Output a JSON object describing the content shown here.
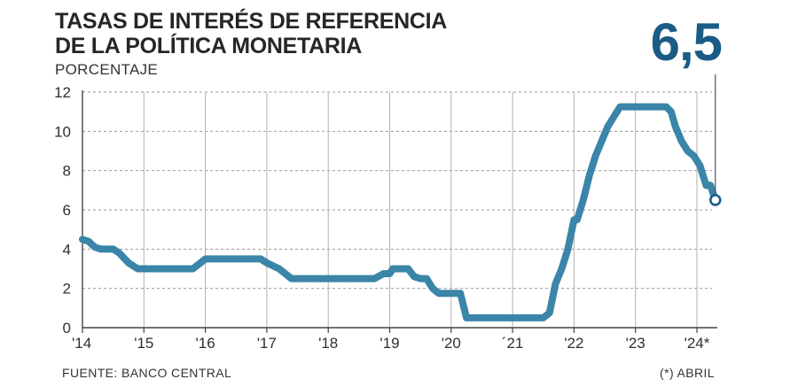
{
  "header": {
    "title_line1": "TASAS DE INTERÉS DE REFERENCIA",
    "title_line2": "DE LA POLÍTICA MONETARIA",
    "unit": "PORCENTAJE",
    "current_value": "6,5"
  },
  "footer": {
    "source": "FUENTE: BANCO CENTRAL",
    "note": "(*) ABRIL"
  },
  "colors": {
    "line": "#3a85a8",
    "big_number": "#1a5c85"
  },
  "chart_data": {
    "type": "line",
    "title": "TASAS DE INTERÉS DE REFERENCIA DE LA POLÍTICA MONETARIA",
    "ylabel": "PORCENTAJE",
    "ylim": [
      0,
      12
    ],
    "yticks": [
      "0",
      "2",
      "4",
      "6",
      "8",
      "10",
      "12"
    ],
    "xlim": [
      2014,
      2024.3
    ],
    "xtick_labels": [
      "'14",
      "'15",
      "'16",
      "'17",
      "'18",
      "'19",
      "'20",
      "´21",
      "'22",
      "'23",
      "'24*"
    ],
    "grid": "horizontal dashed, vertical solid",
    "series": [
      {
        "x": [
          2014.0,
          2014.1,
          2014.2,
          2014.3,
          2014.5,
          2014.6,
          2014.75,
          2014.9,
          2015.0,
          2015.5,
          2015.8,
          2016.0,
          2016.5,
          2016.9,
          2017.0,
          2017.2,
          2017.3,
          2017.4,
          2018.0,
          2018.5,
          2018.75,
          2018.9,
          2019.0,
          2019.05,
          2019.2,
          2019.3,
          2019.4,
          2019.5,
          2019.6,
          2019.7,
          2019.8,
          2019.9,
          2020.0,
          2020.15,
          2020.25,
          2020.5,
          2021.0,
          2021.5,
          2021.6,
          2021.7,
          2021.8,
          2021.9,
          2022.0,
          2022.05,
          2022.15,
          2022.25,
          2022.35,
          2022.45,
          2022.55,
          2022.65,
          2022.75,
          2022.85,
          2023.0,
          2023.5,
          2023.58,
          2023.65,
          2023.75,
          2023.85,
          2023.95,
          2024.05,
          2024.1,
          2024.15,
          2024.22,
          2024.3
        ],
        "y": [
          4.5,
          4.4,
          4.1,
          4.0,
          4.0,
          3.8,
          3.3,
          3.0,
          3.0,
          3.0,
          3.0,
          3.5,
          3.5,
          3.5,
          3.3,
          3.0,
          2.75,
          2.5,
          2.5,
          2.5,
          2.5,
          2.75,
          2.75,
          3.0,
          3.0,
          3.0,
          2.6,
          2.5,
          2.5,
          2.0,
          1.75,
          1.75,
          1.75,
          1.75,
          0.5,
          0.5,
          0.5,
          0.5,
          0.75,
          2.25,
          3.0,
          4.0,
          5.5,
          5.5,
          6.5,
          7.75,
          8.75,
          9.5,
          10.25,
          10.75,
          11.25,
          11.25,
          11.25,
          11.25,
          11.0,
          10.25,
          9.5,
          9.0,
          8.75,
          8.25,
          7.75,
          7.25,
          7.25,
          6.5
        ]
      }
    ]
  }
}
